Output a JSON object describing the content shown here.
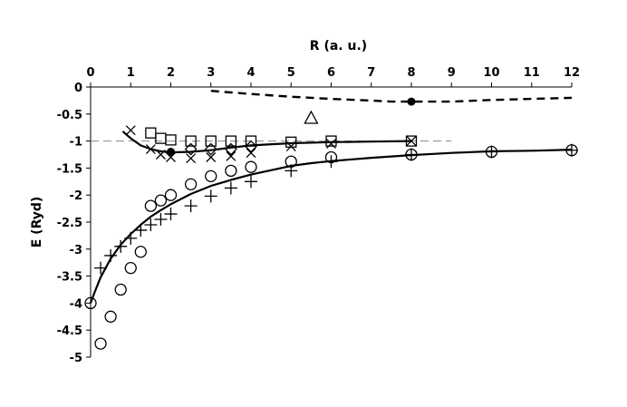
{
  "chart_data": {
    "type": "scatter",
    "title": "",
    "xlabel": "R (a. u.)",
    "ylabel": "E (Ryd)",
    "xlim": [
      0,
      12
    ],
    "ylim": [
      -5,
      0
    ],
    "x_axis_position": "top",
    "x_ticks": [
      0,
      1,
      2,
      3,
      4,
      5,
      6,
      7,
      8,
      9,
      10,
      11,
      12
    ],
    "y_ticks": [
      0,
      -0.5,
      -1,
      -1.5,
      -2,
      -2.5,
      -3,
      -3.5,
      -4,
      -4.5,
      -5
    ],
    "grid": false,
    "legend": "none",
    "reference_line": {
      "y": -1,
      "style": "dashed",
      "x_range": [
        0,
        9
      ]
    },
    "series": [
      {
        "marker": "circle-open",
        "x": [
          0,
          0.25,
          0.5,
          0.75,
          1,
          1.25,
          1.5,
          1.75,
          2,
          2.5,
          3,
          3.5,
          4,
          5,
          6,
          8,
          10,
          12
        ],
        "y": [
          -4,
          -4.75,
          -4.25,
          -3.75,
          -3.35,
          -3.05,
          -2.2,
          -2.1,
          -2,
          -1.8,
          -1.65,
          -1.55,
          -1.48,
          -1.38,
          -1.3,
          -1.25,
          -1.2,
          -1.17
        ]
      },
      {
        "marker": "plus",
        "x": [
          0.25,
          0.5,
          0.75,
          1,
          1.25,
          1.5,
          1.75,
          2,
          2.5,
          3,
          3.5,
          4,
          5,
          6,
          8,
          10,
          12
        ],
        "y": [
          -3.35,
          -3.12,
          -2.95,
          -2.8,
          -2.65,
          -2.55,
          -2.45,
          -2.35,
          -2.2,
          -2.02,
          -1.87,
          -1.75,
          -1.55,
          -1.38,
          -1.25,
          -1.2,
          -1.17
        ]
      },
      {
        "marker": "x",
        "x": [
          1,
          1.5,
          1.75,
          2,
          2.5,
          3,
          3.5,
          4,
          5,
          6,
          8
        ],
        "y": [
          -0.8,
          -1.15,
          -1.25,
          -1.3,
          -1.32,
          -1.3,
          -1.28,
          -1.22,
          -1.1,
          -1.05,
          -1
        ]
      },
      {
        "marker": "square-open",
        "x": [
          1.5,
          1.75,
          2,
          2.5,
          3,
          3.5,
          4,
          5,
          6,
          8
        ],
        "y": [
          -0.85,
          -0.95,
          -0.98,
          -1,
          -1,
          -1,
          -1,
          -1.02,
          -1,
          -1
        ]
      },
      {
        "marker": "diamond-open",
        "x": [
          2.5,
          3,
          3.5,
          4
        ],
        "y": [
          -1.15,
          -1.15,
          -1.15,
          -1.1
        ]
      },
      {
        "marker": "circle-filled",
        "x": [
          2,
          8
        ],
        "y": [
          -1.2,
          -0.27
        ]
      },
      {
        "marker": "triangle-open",
        "x": [
          5.5
        ],
        "y": [
          -0.57
        ]
      }
    ],
    "curves": [
      {
        "style": "solid",
        "x": [
          0,
          0.1,
          0.25,
          0.5,
          0.75,
          1,
          1.25,
          1.5,
          1.75,
          2,
          2.5,
          3,
          3.5,
          4,
          4.5,
          5,
          5.5,
          6,
          7,
          8,
          9,
          10,
          11,
          12
        ],
        "y": [
          -4,
          -3.8,
          -3.52,
          -3.18,
          -2.92,
          -2.72,
          -2.55,
          -2.4,
          -2.28,
          -2.17,
          -1.98,
          -1.83,
          -1.72,
          -1.62,
          -1.54,
          -1.46,
          -1.41,
          -1.37,
          -1.31,
          -1.26,
          -1.22,
          -1.19,
          -1.18,
          -1.16
        ]
      },
      {
        "style": "solid",
        "x": [
          0.8,
          1,
          1.25,
          1.5,
          1.75,
          2,
          2.5,
          3,
          3.5,
          4,
          5,
          6,
          7,
          8
        ],
        "y": [
          -0.82,
          -0.95,
          -1.08,
          -1.15,
          -1.19,
          -1.21,
          -1.2,
          -1.17,
          -1.12,
          -1.08,
          -1.04,
          -1.02,
          -1.01,
          -1
        ]
      },
      {
        "style": "dashed",
        "x": [
          3,
          3.5,
          4,
          5,
          6,
          7,
          7.5,
          8,
          9,
          10,
          11,
          12
        ],
        "y": [
          -0.07,
          -0.1,
          -0.13,
          -0.18,
          -0.22,
          -0.25,
          -0.27,
          -0.27,
          -0.27,
          -0.24,
          -0.22,
          -0.2
        ]
      }
    ]
  }
}
